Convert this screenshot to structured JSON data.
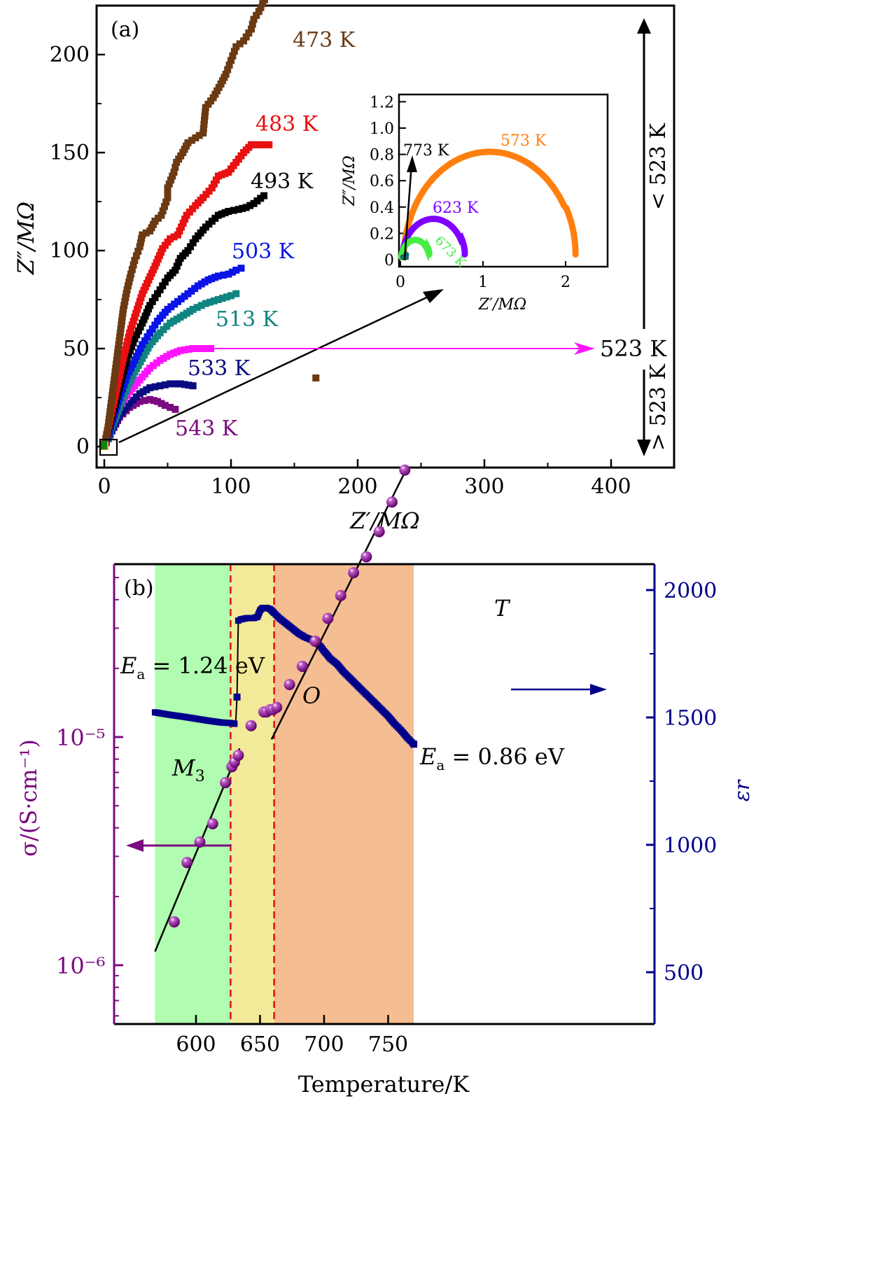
{
  "chart_data": [
    {
      "panel": "a",
      "type": "scatter",
      "panel_label": "(a)",
      "xlabel": "Z′/MΩ",
      "ylabel": "Z″/MΩ",
      "xlim": [
        -5,
        450
      ],
      "ylim": [
        -10,
        225
      ],
      "xticks": [
        0,
        100,
        200,
        300,
        400
      ],
      "yticks": [
        0,
        50,
        100,
        150,
        200
      ],
      "series": [
        {
          "name": "473 K",
          "color": "#6b3a12",
          "points": [
            [
              0,
              0
            ],
            [
              3,
              10
            ],
            [
              5,
              20
            ],
            [
              7,
              30
            ],
            [
              9,
              40
            ],
            [
              11,
              50
            ],
            [
              13,
              60
            ],
            [
              15,
              70
            ],
            [
              18,
              80
            ],
            [
              21,
              88
            ],
            [
              24,
              95
            ],
            [
              28,
              102
            ],
            [
              30,
              108
            ],
            [
              36,
              110
            ],
            [
              40,
              115
            ],
            [
              45,
              118
            ],
            [
              50,
              127
            ],
            [
              50,
              132
            ],
            [
              55,
              140
            ],
            [
              57,
              145
            ],
            [
              62,
              150
            ],
            [
              66,
              155
            ],
            [
              78,
              160
            ],
            [
              80,
              173
            ],
            [
              86,
              178
            ],
            [
              92,
              185
            ],
            [
              96,
              190
            ],
            [
              100,
              197
            ],
            [
              104,
              204
            ],
            [
              110,
              207
            ],
            [
              116,
              213
            ],
            [
              118,
              218
            ],
            [
              122,
              222
            ],
            [
              128,
              230
            ]
          ],
          "label_at": [
            420,
            200
          ]
        },
        {
          "name": "483 K",
          "color": "#e81010",
          "points": [
            [
              0,
              0
            ],
            [
              5,
              15
            ],
            [
              10,
              30
            ],
            [
              15,
              45
            ],
            [
              20,
              58
            ],
            [
              25,
              68
            ],
            [
              30,
              78
            ],
            [
              35,
              85
            ],
            [
              40,
              92
            ],
            [
              46,
              101
            ],
            [
              52,
              106
            ],
            [
              58,
              108
            ],
            [
              65,
              118
            ],
            [
              72,
              123
            ],
            [
              78,
              127
            ],
            [
              85,
              132
            ],
            [
              90,
              138
            ],
            [
              98,
              140
            ],
            [
              104,
              145
            ],
            [
              110,
              150
            ],
            [
              116,
              154
            ],
            [
              121,
              154
            ],
            [
              130,
              154
            ]
          ],
          "label_at": [
            360,
            160
          ]
        },
        {
          "name": "493 K",
          "color": "#000000",
          "points": [
            [
              0,
              0
            ],
            [
              6,
              15
            ],
            [
              12,
              30
            ],
            [
              18,
              45
            ],
            [
              24,
              55
            ],
            [
              30,
              63
            ],
            [
              36,
              72
            ],
            [
              44,
              80
            ],
            [
              50,
              86
            ],
            [
              56,
              90
            ],
            [
              60,
              96
            ],
            [
              66,
              100
            ],
            [
              72,
              106
            ],
            [
              80,
              112
            ],
            [
              85,
              115
            ],
            [
              90,
              118
            ],
            [
              98,
              120
            ],
            [
              106,
              121
            ],
            [
              112,
              122
            ],
            [
              118,
              124
            ],
            [
              126,
              128
            ]
          ],
          "label_at": [
            360,
            136
          ]
        },
        {
          "name": "503 K",
          "color": "#0a14e6",
          "points": [
            [
              0,
              0
            ],
            [
              6,
              12
            ],
            [
              12,
              25
            ],
            [
              18,
              36
            ],
            [
              24,
              44
            ],
            [
              30,
              52
            ],
            [
              36,
              58
            ],
            [
              42,
              64
            ],
            [
              50,
              70
            ],
            [
              58,
              74
            ],
            [
              66,
              78
            ],
            [
              74,
              82
            ],
            [
              82,
              85
            ],
            [
              90,
              87
            ],
            [
              98,
              88
            ],
            [
              104,
              90
            ],
            [
              108,
              91
            ]
          ],
          "label_at": [
            330,
            100
          ]
        },
        {
          "name": "513 K",
          "color": "#108480",
          "points": [
            [
              0,
              0
            ],
            [
              6,
              10
            ],
            [
              12,
              20
            ],
            [
              18,
              30
            ],
            [
              24,
              38
            ],
            [
              30,
              45
            ],
            [
              36,
              52
            ],
            [
              44,
              58
            ],
            [
              52,
              63
            ],
            [
              60,
              66
            ],
            [
              70,
              70
            ],
            [
              80,
              73
            ],
            [
              90,
              75
            ],
            [
              100,
              77
            ],
            [
              104,
              78
            ]
          ],
          "label_at": [
            310,
            63
          ]
        },
        {
          "name": "523 K",
          "color": "#ff14ff",
          "points": [
            [
              0,
              0
            ],
            [
              6,
              10
            ],
            [
              12,
              20
            ],
            [
              20,
              28
            ],
            [
              28,
              34
            ],
            [
              36,
              40
            ],
            [
              44,
              44
            ],
            [
              52,
              47
            ],
            [
              60,
              49
            ],
            [
              70,
              50
            ],
            [
              80,
              50
            ],
            [
              84,
              50
            ]
          ],
          "label_at": [
            850,
            50
          ]
        },
        {
          "name": "533 K",
          "color": "#0a0a80",
          "points": [
            [
              0,
              0
            ],
            [
              6,
              8
            ],
            [
              12,
              16
            ],
            [
              20,
              22
            ],
            [
              28,
              27
            ],
            [
              36,
              30
            ],
            [
              44,
              31
            ],
            [
              52,
              32
            ],
            [
              60,
              32
            ],
            [
              70,
              31
            ]
          ],
          "label_at": [
            270,
            38
          ]
        },
        {
          "name": "543 K",
          "color": "#7a0a80",
          "points": [
            [
              0,
              0
            ],
            [
              6,
              8
            ],
            [
              12,
              15
            ],
            [
              20,
              20
            ],
            [
              28,
              23
            ],
            [
              36,
              24
            ],
            [
              42,
              23
            ],
            [
              48,
              21
            ],
            [
              52,
              20
            ],
            [
              56,
              19
            ]
          ],
          "label_at": [
            255,
            10
          ]
        }
      ],
      "outlier_point": [
        167,
        35
      ],
      "annotations": {
        "range_above": "< 523 K",
        "range_below": "> 523 K",
        "mid_label": "523 K"
      },
      "inset": {
        "type": "line",
        "xlabel": "Z′/MΩ",
        "ylabel": "Z″/MΩ",
        "xlim": [
          -0.02,
          2.5
        ],
        "ylim": [
          -0.05,
          1.25
        ],
        "xticks": [
          0,
          1,
          2
        ],
        "yticks": [
          0,
          0.2,
          0.4,
          0.6,
          0.8,
          1.0,
          1.2
        ],
        "ytick_labels": [
          "0",
          "0.2",
          "0.4",
          "0.6",
          "0.8",
          "1.0",
          "1.2"
        ],
        "series": [
          {
            "name": "573 K",
            "color": "#ff7f0e",
            "center": 1.08,
            "radius": 1.04,
            "height": 0.82,
            "end": 2.12,
            "label_at": [
              1.3,
              0.86
            ]
          },
          {
            "name": "623 K",
            "color": "#7f00ff",
            "center": 0.4,
            "radius": 0.38,
            "height": 0.31,
            "end": 0.8,
            "label_at": [
              0.45,
              0.4
            ]
          },
          {
            "name": "673 K",
            "color": "#44ee44",
            "center": 0.18,
            "radius": 0.17,
            "height": 0.15,
            "end": 0.36,
            "label_at": [
              0.48,
              0.12
            ]
          },
          {
            "name": "773 K",
            "color": "#107070",
            "center": 0.05,
            "radius": 0.02,
            "height": 0.02,
            "end": 0.07,
            "label_at": [
              0.02,
              0.82
            ]
          }
        ]
      }
    },
    {
      "panel": "b",
      "type": "scatter",
      "panel_label": "(b)",
      "xlabel": "Temperature/K",
      "ylabel_left": "σ/(S·cm⁻¹)",
      "ylabel_right": "εr",
      "xlim": [
        568,
        770
      ],
      "xticks": [
        600,
        650,
        700,
        750
      ],
      "ylim_left_log10": [
        -6.52,
        -4.65
      ],
      "yticks_left": [
        "10⁻⁵",
        "10⁻⁶"
      ],
      "yticks_left_values": [
        -5,
        -6
      ],
      "ylim_right": [
        300,
        2090
      ],
      "yticks_right": [
        500,
        1000,
        1500,
        2000
      ],
      "phase_boundaries": [
        627,
        661
      ],
      "phases": [
        {
          "name": "M3",
          "from": 568,
          "to": 627,
          "color": "#b0fcb0"
        },
        {
          "name": "O",
          "from": 627,
          "to": 661,
          "color": "#f2ea98"
        },
        {
          "name": "T",
          "from": 661,
          "to": 770,
          "color": "#f5bd92"
        }
      ],
      "sigma_points": [
        [
          583,
          -5.81
        ],
        [
          593,
          -5.55
        ],
        [
          603,
          -5.46
        ],
        [
          613,
          -5.38
        ],
        [
          623,
          -5.2
        ],
        [
          628,
          -5.13
        ],
        [
          630,
          -5.11
        ],
        [
          633,
          -5.08
        ],
        [
          643,
          -4.95
        ],
        [
          653,
          -4.89
        ],
        [
          655,
          -4.89
        ],
        [
          658,
          -4.88
        ],
        [
          660,
          -4.88
        ],
        [
          663,
          -4.87
        ],
        [
          673,
          -4.77
        ],
        [
          683,
          -4.69
        ],
        [
          693,
          -4.58
        ],
        [
          703,
          -4.48
        ],
        [
          713,
          -4.38
        ],
        [
          723,
          -4.28
        ],
        [
          733,
          -4.21
        ],
        [
          743,
          -4.1
        ],
        [
          753,
          -3.97
        ],
        [
          763,
          -3.83
        ]
      ],
      "eps_curve": [
        [
          568,
          1520
        ],
        [
          580,
          1510
        ],
        [
          590,
          1503
        ],
        [
          600,
          1495
        ],
        [
          610,
          1487
        ],
        [
          620,
          1480
        ],
        [
          627,
          1478
        ],
        [
          630,
          1475
        ],
        [
          631,
          1480
        ],
        [
          632,
          1580
        ],
        [
          633,
          1880
        ],
        [
          635,
          1885
        ],
        [
          640,
          1890
        ],
        [
          645,
          1890
        ],
        [
          648,
          1895
        ],
        [
          650,
          1920
        ],
        [
          652,
          1930
        ],
        [
          655,
          1930
        ],
        [
          658,
          1925
        ],
        [
          661,
          1910
        ],
        [
          665,
          1890
        ],
        [
          670,
          1870
        ],
        [
          675,
          1850
        ],
        [
          680,
          1830
        ],
        [
          685,
          1815
        ],
        [
          690,
          1805
        ],
        [
          693,
          1800
        ],
        [
          697,
          1780
        ],
        [
          700,
          1760
        ],
        [
          705,
          1730
        ],
        [
          710,
          1710
        ],
        [
          715,
          1680
        ],
        [
          720,
          1655
        ],
        [
          725,
          1630
        ],
        [
          730,
          1605
        ],
        [
          735,
          1580
        ],
        [
          740,
          1555
        ],
        [
          745,
          1530
        ],
        [
          750,
          1505
        ],
        [
          755,
          1475
        ],
        [
          760,
          1450
        ],
        [
          765,
          1420
        ],
        [
          770,
          1395
        ]
      ],
      "fit_lines": [
        {
          "label": "Ea = 1.24 eV",
          "from": [
            568,
            -5.94
          ],
          "to": [
            634,
            -5.05
          ]
        },
        {
          "label": "Ea = 0.86 eV",
          "from": [
            659,
            -5.01
          ],
          "to": [
            763,
            -3.84
          ]
        }
      ],
      "annotations": {
        "ea_low": {
          "symbol": "E",
          "sub": "a",
          "text": " = 1.24 eV"
        },
        "ea_high": {
          "symbol": "E",
          "sub": "a",
          "text": " = 0.86 eV"
        },
        "phase_M3": {
          "symbol": "M",
          "sub": "3"
        },
        "phase_O": "O",
        "phase_T": "T"
      }
    }
  ],
  "colors": {
    "sigma": "#7a0a80",
    "epsilon": "#00008b",
    "boundary": "#e01010"
  }
}
